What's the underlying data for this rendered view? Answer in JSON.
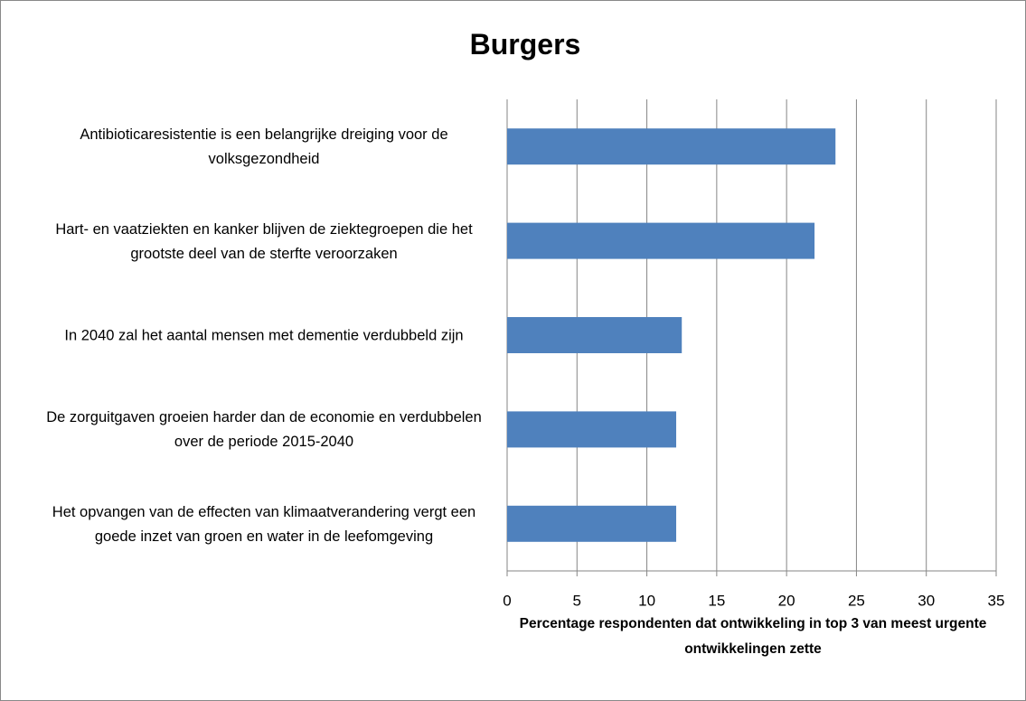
{
  "chart_data": {
    "type": "bar",
    "orientation": "horizontal",
    "title": "Burgers",
    "categories": [
      "Antibioticaresistentie is een belangrijke dreiging voor de volksgezondheid",
      "Hart- en vaatziekten en kanker blijven de ziektegroepen die het grootste deel van de sterfte veroorzaken",
      "In 2040 zal het aantal mensen met dementie verdubbeld zijn",
      "De zorguitgaven groeien harder dan de economie en verdubbelen over de periode 2015-2040",
      "Het opvangen van de effecten van klimaatverandering vergt een goede inzet van groen en water in de leefomgeving"
    ],
    "values": [
      23.5,
      22,
      12.5,
      12.1,
      12.1
    ],
    "color": "#4f81bd",
    "xlabel": "Percentage respondenten dat ontwikkeling in top 3 van meest urgente ontwikkelingen zette",
    "xlim": [
      0,
      35
    ],
    "xticks": [
      0,
      5,
      10,
      15,
      20,
      25,
      30,
      35
    ],
    "grid": true
  }
}
